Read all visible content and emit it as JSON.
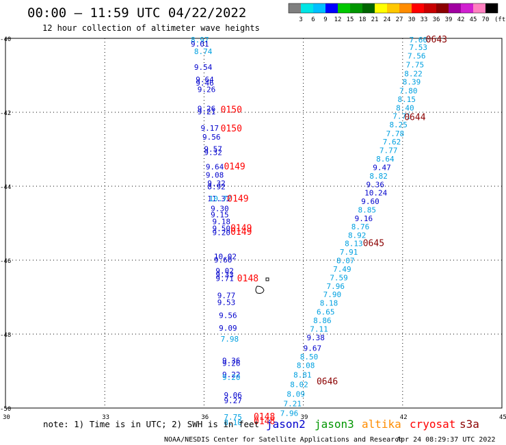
{
  "header": {
    "title": "00:00 – 11:59 UTC 04/22/2022",
    "subtitle": "12 hour collection of altimeter wave heights"
  },
  "colorbar": {
    "ticks": [
      "3",
      "6",
      "9",
      "12",
      "15",
      "18",
      "21",
      "24",
      "27",
      "30",
      "33",
      "36",
      "39",
      "42",
      "45",
      "70"
    ],
    "unit": "(ft)",
    "colors": [
      "#7f7f7f",
      "#00e5e5",
      "#00bfff",
      "#0000ff",
      "#00c800",
      "#009600",
      "#006400",
      "#ffff00",
      "#ffc800",
      "#ff8c00",
      "#ff0000",
      "#c80000",
      "#8b0000",
      "#a000a0",
      "#d020d0",
      "#ff80c0",
      "#000000"
    ]
  },
  "footer": {
    "note": "note: 1) Time is in UTC; 2) SWH is in feet",
    "satellites": [
      {
        "name": "jason2",
        "color": "#0000cc"
      },
      {
        "name": "jason3",
        "color": "#009600"
      },
      {
        "name": "altika",
        "color": "#ff8c00"
      },
      {
        "name": "cryosat",
        "color": "#ff0000"
      },
      {
        "name": "s3a",
        "color": "#8b0000"
      }
    ],
    "credit": "NOAA/NESDIS Center for Satellite Applications and Research",
    "generated": "Apr 24 08:29:37 UTC 2022"
  },
  "chart_data": {
    "type": "scatter",
    "xlim": [
      30,
      45
    ],
    "ylim": [
      -50,
      -40
    ],
    "xticks": [
      "30",
      "33",
      "36",
      "39",
      "42",
      "45"
    ],
    "yticks": [
      "-40",
      "-42",
      "-44",
      "-46",
      "-48",
      "-50"
    ],
    "grid": true,
    "colors": {
      "light": "#00a0e0",
      "dark": "#0000cc",
      "cryosat": "#ff0000",
      "s3a": "#8b0000"
    },
    "west_track": [
      {
        "x": 35.6,
        "y": -40.04,
        "v": "8.97",
        "c": "light"
      },
      {
        "x": 35.6,
        "y": -40.15,
        "v": "9.01",
        "c": "dark"
      },
      {
        "x": 35.7,
        "y": -40.35,
        "v": "8.74",
        "c": "light"
      },
      {
        "x": 35.7,
        "y": -40.78,
        "v": "9.54",
        "c": "dark"
      },
      {
        "x": 35.75,
        "y": -41.11,
        "v": "9.64",
        "c": "dark"
      },
      {
        "x": 35.75,
        "y": -41.2,
        "v": "9.46",
        "c": "dark"
      },
      {
        "x": 35.8,
        "y": -41.38,
        "v": "9.26",
        "c": "dark"
      },
      {
        "x": 35.8,
        "y": -41.9,
        "v": "9.26",
        "c": "dark"
      },
      {
        "x": 35.8,
        "y": -41.98,
        "v": "9.21",
        "c": "dark"
      },
      {
        "x": 35.9,
        "y": -42.43,
        "v": "9.17",
        "c": "dark"
      },
      {
        "x": 35.95,
        "y": -42.67,
        "v": "9.56",
        "c": "dark"
      },
      {
        "x": 36.0,
        "y": -42.99,
        "v": "9.57",
        "c": "dark"
      },
      {
        "x": 36.0,
        "y": -43.08,
        "v": "9.32",
        "c": "dark"
      },
      {
        "x": 36.05,
        "y": -43.47,
        "v": "9.64",
        "c": "dark"
      },
      {
        "x": 36.05,
        "y": -43.69,
        "v": "9.08",
        "c": "dark"
      },
      {
        "x": 36.1,
        "y": -43.92,
        "v": "9.32",
        "c": "dark"
      },
      {
        "x": 36.1,
        "y": -44.01,
        "v": "8.92",
        "c": "dark"
      },
      {
        "x": 36.1,
        "y": -44.33,
        "v": "11.31",
        "c": "dark"
      },
      {
        "x": 36.15,
        "y": -44.33,
        "v": "10.77",
        "c": "light"
      },
      {
        "x": 36.2,
        "y": -44.6,
        "v": "9.30",
        "c": "dark"
      },
      {
        "x": 36.2,
        "y": -44.77,
        "v": "9.15",
        "c": "dark"
      },
      {
        "x": 36.25,
        "y": -44.95,
        "v": "9.18",
        "c": "dark"
      },
      {
        "x": 36.25,
        "y": -45.14,
        "v": "9.50",
        "c": "dark"
      },
      {
        "x": 36.25,
        "y": -45.25,
        "v": "9.20",
        "c": "dark"
      },
      {
        "x": 36.3,
        "y": -45.9,
        "v": "10.02",
        "c": "dark"
      },
      {
        "x": 36.3,
        "y": -45.99,
        "v": "9.60",
        "c": "dark"
      },
      {
        "x": 36.35,
        "y": -46.29,
        "v": "9.02",
        "c": "dark"
      },
      {
        "x": 36.35,
        "y": -46.39,
        "v": "9.33",
        "c": "dark"
      },
      {
        "x": 36.35,
        "y": -46.49,
        "v": "9.71",
        "c": "dark"
      },
      {
        "x": 36.4,
        "y": -46.95,
        "v": "9.77",
        "c": "dark"
      },
      {
        "x": 36.4,
        "y": -47.14,
        "v": "9.53",
        "c": "dark"
      },
      {
        "x": 36.45,
        "y": -47.49,
        "v": "9.56",
        "c": "dark"
      },
      {
        "x": 36.45,
        "y": -47.83,
        "v": "9.09",
        "c": "dark"
      },
      {
        "x": 36.5,
        "y": -48.13,
        "v": "7.98",
        "c": "light"
      },
      {
        "x": 36.55,
        "y": -48.71,
        "v": "9.36",
        "c": "dark"
      },
      {
        "x": 36.55,
        "y": -48.79,
        "v": "9.26",
        "c": "dark"
      },
      {
        "x": 36.55,
        "y": -49.09,
        "v": "9.22",
        "c": "dark"
      },
      {
        "x": 36.55,
        "y": -49.17,
        "v": "9.20",
        "c": "light"
      },
      {
        "x": 36.6,
        "y": -49.65,
        "v": "9.06",
        "c": "dark"
      },
      {
        "x": 36.6,
        "y": -49.8,
        "v": "9.27",
        "c": "dark"
      },
      {
        "x": 36.6,
        "y": -50.24,
        "v": "7.75",
        "c": "light"
      },
      {
        "x": 36.6,
        "y": -50.39,
        "v": "8.10",
        "c": "light"
      }
    ],
    "east_track": [
      {
        "x": 42.2,
        "y": -40.04,
        "v": "7.60",
        "c": "light"
      },
      {
        "x": 42.2,
        "y": -40.24,
        "v": "7.53",
        "c": "light"
      },
      {
        "x": 42.15,
        "y": -40.47,
        "v": "7.56",
        "c": "light"
      },
      {
        "x": 42.1,
        "y": -40.71,
        "v": "7.75",
        "c": "light"
      },
      {
        "x": 42.05,
        "y": -40.95,
        "v": "8.22",
        "c": "light"
      },
      {
        "x": 42.0,
        "y": -41.18,
        "v": "8.39",
        "c": "light"
      },
      {
        "x": 41.9,
        "y": -41.42,
        "v": "7.80",
        "c": "light"
      },
      {
        "x": 41.85,
        "y": -41.65,
        "v": "8.15",
        "c": "light"
      },
      {
        "x": 41.8,
        "y": -41.88,
        "v": "8.40",
        "c": "light"
      },
      {
        "x": 41.7,
        "y": -42.1,
        "v": "7.71",
        "c": "light"
      },
      {
        "x": 41.6,
        "y": -42.33,
        "v": "8.25",
        "c": "light"
      },
      {
        "x": 41.5,
        "y": -42.57,
        "v": "7.78",
        "c": "light"
      },
      {
        "x": 41.4,
        "y": -42.8,
        "v": "7.62",
        "c": "light"
      },
      {
        "x": 41.3,
        "y": -43.03,
        "v": "7.77",
        "c": "light"
      },
      {
        "x": 41.2,
        "y": -43.26,
        "v": "8.64",
        "c": "light"
      },
      {
        "x": 41.1,
        "y": -43.49,
        "v": "9.47",
        "c": "dark"
      },
      {
        "x": 41.0,
        "y": -43.72,
        "v": "8.82",
        "c": "light"
      },
      {
        "x": 40.9,
        "y": -43.95,
        "v": "9.36",
        "c": "dark"
      },
      {
        "x": 40.85,
        "y": -44.18,
        "v": "10.24",
        "c": "dark"
      },
      {
        "x": 40.75,
        "y": -44.41,
        "v": "9.60",
        "c": "dark"
      },
      {
        "x": 40.65,
        "y": -44.64,
        "v": "8.85",
        "c": "light"
      },
      {
        "x": 40.55,
        "y": -44.87,
        "v": "9.16",
        "c": "dark"
      },
      {
        "x": 40.45,
        "y": -45.09,
        "v": "8.76",
        "c": "light"
      },
      {
        "x": 40.35,
        "y": -45.32,
        "v": "8.92",
        "c": "light"
      },
      {
        "x": 40.25,
        "y": -45.55,
        "v": "8.13",
        "c": "light"
      },
      {
        "x": 40.1,
        "y": -45.78,
        "v": "7.91",
        "c": "light"
      },
      {
        "x": 40.0,
        "y": -46.01,
        "v": "8.07",
        "c": "light"
      },
      {
        "x": 39.9,
        "y": -46.24,
        "v": "7.49",
        "c": "light"
      },
      {
        "x": 39.8,
        "y": -46.47,
        "v": "7.59",
        "c": "light"
      },
      {
        "x": 39.7,
        "y": -46.7,
        "v": "7.96",
        "c": "light"
      },
      {
        "x": 39.6,
        "y": -46.93,
        "v": "7.90",
        "c": "light"
      },
      {
        "x": 39.5,
        "y": -47.16,
        "v": "8.18",
        "c": "light"
      },
      {
        "x": 39.4,
        "y": -47.4,
        "v": "6.65",
        "c": "light"
      },
      {
        "x": 39.3,
        "y": -47.63,
        "v": "8.86",
        "c": "light"
      },
      {
        "x": 39.2,
        "y": -47.86,
        "v": "7.11",
        "c": "light"
      },
      {
        "x": 39.1,
        "y": -48.09,
        "v": "9.38",
        "c": "dark"
      },
      {
        "x": 39.0,
        "y": -48.38,
        "v": "9.67",
        "c": "dark"
      },
      {
        "x": 38.9,
        "y": -48.61,
        "v": "8.50",
        "c": "light"
      },
      {
        "x": 38.8,
        "y": -48.84,
        "v": "8.08",
        "c": "light"
      },
      {
        "x": 38.7,
        "y": -49.1,
        "v": "8.81",
        "c": "light"
      },
      {
        "x": 38.6,
        "y": -49.36,
        "v": "8.02",
        "c": "light"
      },
      {
        "x": 38.5,
        "y": -49.62,
        "v": "8.09",
        "c": "light"
      },
      {
        "x": 38.4,
        "y": -49.88,
        "v": "7.21",
        "c": "light"
      },
      {
        "x": 38.3,
        "y": -50.14,
        "v": "7.96",
        "c": "light"
      }
    ],
    "time_labels": [
      {
        "x": 36.5,
        "y": -41.92,
        "v": "0150",
        "c": "cryosat"
      },
      {
        "x": 36.5,
        "y": -42.43,
        "v": "0150",
        "c": "cryosat"
      },
      {
        "x": 36.6,
        "y": -43.45,
        "v": "0149",
        "c": "cryosat"
      },
      {
        "x": 36.7,
        "y": -44.32,
        "v": "0149",
        "c": "cryosat"
      },
      {
        "x": 36.8,
        "y": -45.12,
        "v": "0149",
        "c": "cryosat"
      },
      {
        "x": 36.8,
        "y": -45.22,
        "v": "0149",
        "c": "cryosat"
      },
      {
        "x": 37.0,
        "y": -46.48,
        "v": "0148",
        "c": "cryosat"
      },
      {
        "x": 37.5,
        "y": -50.22,
        "v": "0148",
        "c": "cryosat"
      },
      {
        "x": 37.5,
        "y": -50.34,
        "v": "0148",
        "c": "cryosat"
      },
      {
        "x": 42.7,
        "y": -40.02,
        "v": "0643",
        "c": "s3a"
      },
      {
        "x": 42.05,
        "y": -42.12,
        "v": "0644",
        "c": "s3a"
      },
      {
        "x": 40.8,
        "y": -45.53,
        "v": "0645",
        "c": "s3a"
      },
      {
        "x": 39.4,
        "y": -49.27,
        "v": "0646",
        "c": "s3a"
      }
    ]
  }
}
